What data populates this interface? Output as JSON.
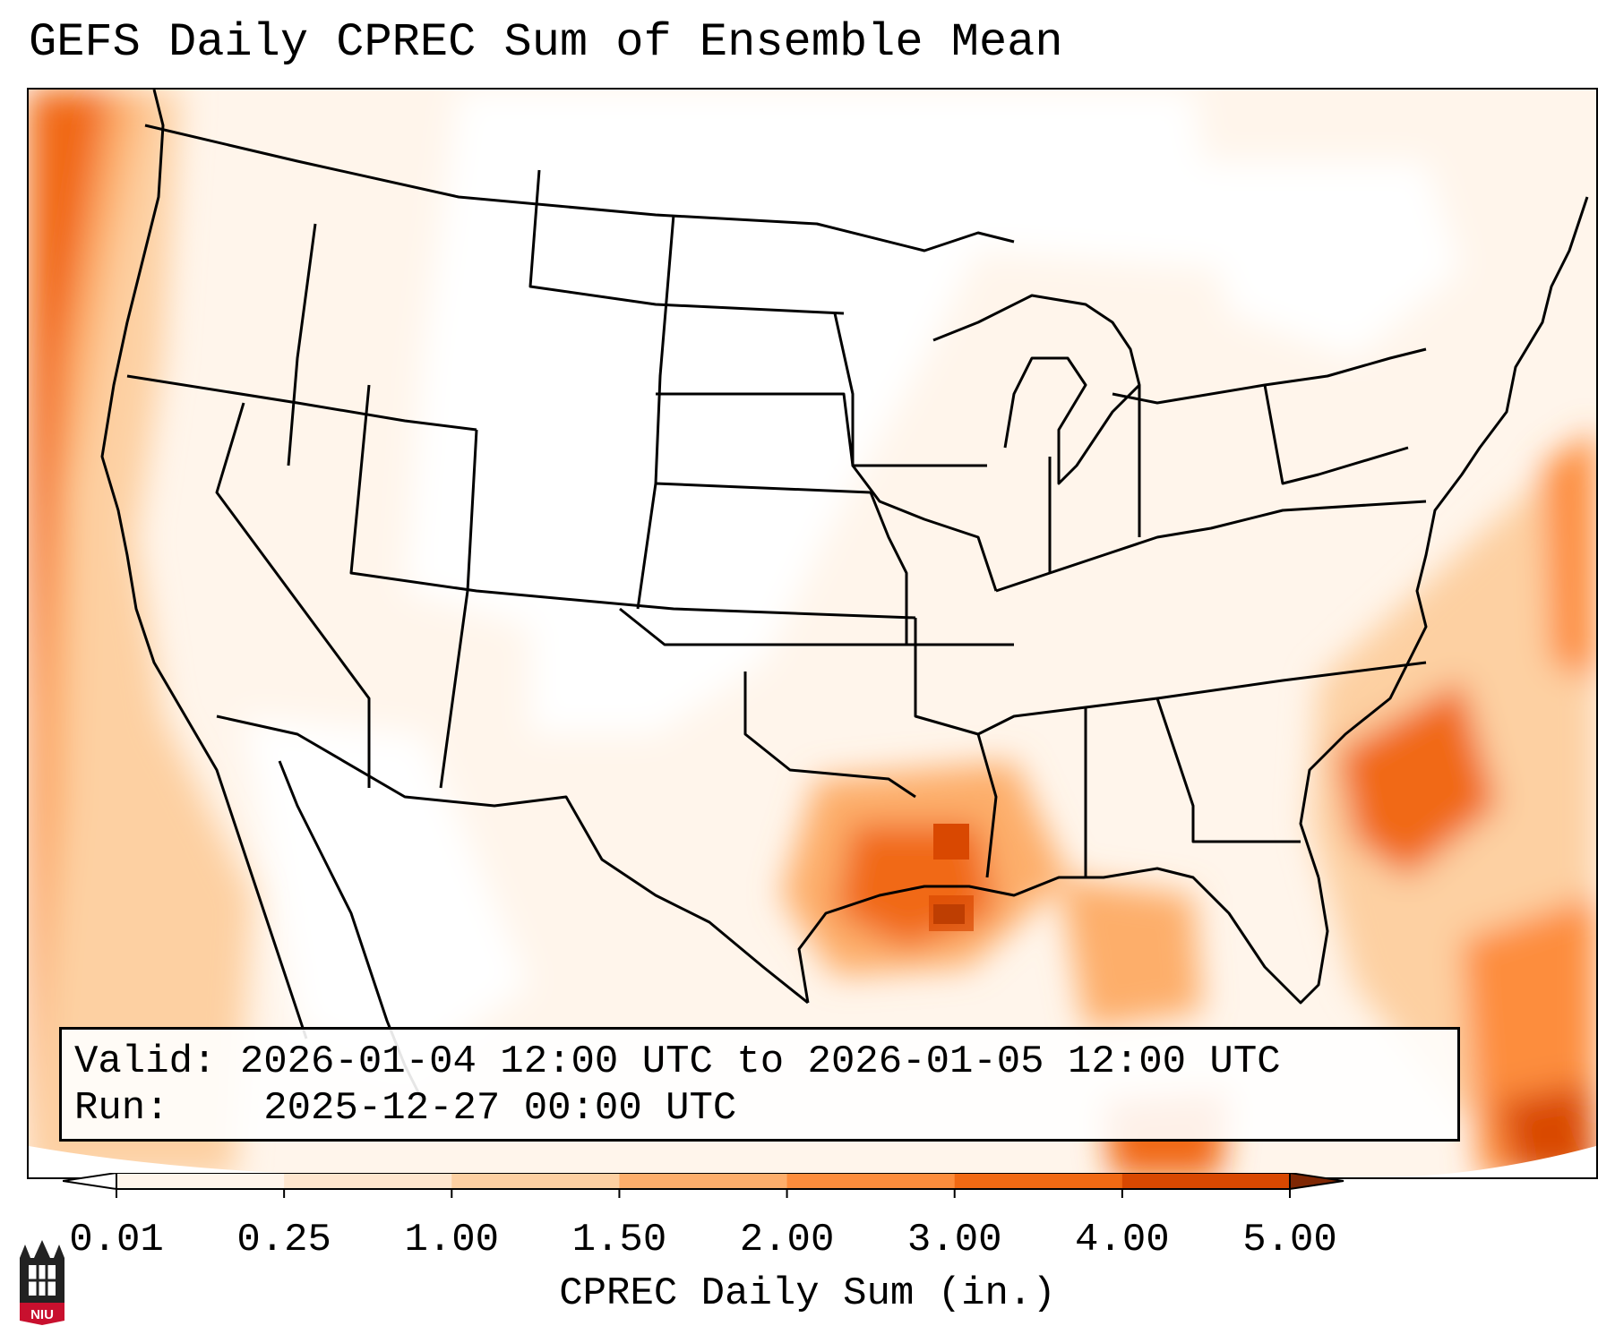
{
  "title": "GEFS Daily CPREC Sum of Ensemble Mean",
  "info": {
    "valid_label": "Valid:",
    "valid_value": "2026-01-04 12:00 UTC to 2026-01-05 12:00 UTC",
    "run_label": "Run:",
    "run_value": "2025-12-27 00:00 UTC"
  },
  "colorbar": {
    "label": "CPREC Daily Sum (in.)",
    "ticks": [
      "0.01",
      "0.25",
      "1.00",
      "1.50",
      "2.00",
      "3.00",
      "4.00",
      "5.00"
    ],
    "colors": [
      "#fff5eb",
      "#fee6ce",
      "#fdd0a2",
      "#fdae6b",
      "#fd8d3c",
      "#f16913",
      "#d94801",
      "#a63603"
    ],
    "over_color": "#7f2704",
    "under_color": "#ffffff"
  },
  "logo": {
    "text": "NIU",
    "color": "#c8102e"
  }
}
